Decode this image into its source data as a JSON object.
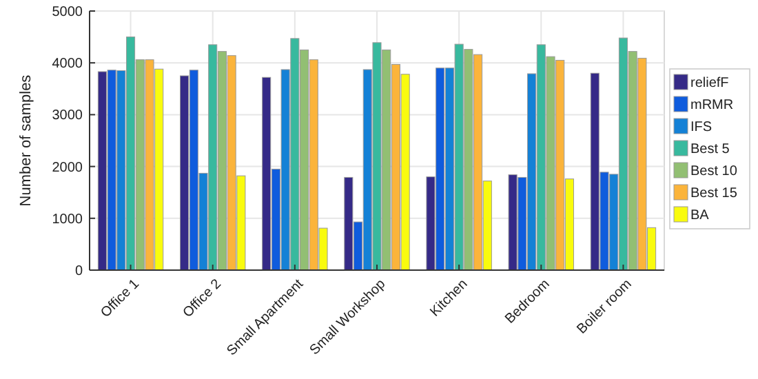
{
  "chart_data": {
    "type": "bar",
    "ylabel": "Number of samples",
    "categories": [
      "Office 1",
      "Office 2",
      "Small Apartment",
      "Small Workshop",
      "Kitchen",
      "Bedroom",
      "Boiler room"
    ],
    "series": [
      {
        "name": "reliefF",
        "color": "#352a87",
        "values": [
          3830,
          3750,
          3720,
          1790,
          1800,
          1840,
          3800
        ]
      },
      {
        "name": "mRMR",
        "color": "#0f5cdd",
        "values": [
          3860,
          3860,
          1950,
          930,
          3900,
          1790,
          1890
        ]
      },
      {
        "name": "IFS",
        "color": "#1481d6",
        "values": [
          3850,
          1870,
          3870,
          3870,
          3900,
          3790,
          1850
        ]
      },
      {
        "name": "Best 5",
        "color": "#38b99e",
        "values": [
          4500,
          4350,
          4470,
          4390,
          4360,
          4350,
          4480
        ]
      },
      {
        "name": "Best 10",
        "color": "#92bf73",
        "values": [
          4060,
          4220,
          4250,
          4250,
          4260,
          4120,
          4220
        ]
      },
      {
        "name": "Best 15",
        "color": "#fbb43b",
        "values": [
          4060,
          4140,
          4060,
          3970,
          4160,
          4050,
          4090
        ]
      },
      {
        "name": "BA",
        "color": "#f9fb0e",
        "values": [
          3880,
          1820,
          810,
          3780,
          1720,
          1760,
          820
        ]
      }
    ],
    "ylim": [
      0,
      5000
    ],
    "yticks": [
      0,
      1000,
      2000,
      3000,
      4000,
      5000
    ],
    "grid": true,
    "legend": "right"
  }
}
